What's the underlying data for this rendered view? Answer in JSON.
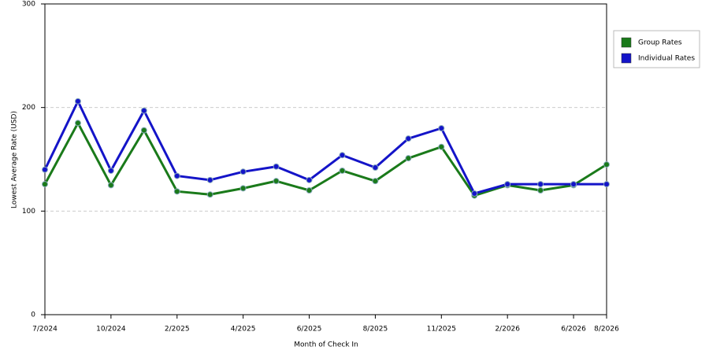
{
  "chart_data": {
    "type": "line",
    "x_label": "Month of Check In",
    "y_label": "Lowest Average Rate (USD)",
    "categories": [
      "7/2024",
      null,
      "10/2024",
      null,
      "2/2025",
      null,
      "4/2025",
      null,
      "6/2025",
      null,
      "8/2025",
      null,
      "11/2025",
      null,
      "2/2026",
      null,
      "6/2026",
      "8/2026"
    ],
    "series": [
      {
        "name": "Group Rates",
        "color": "#1a7a1a",
        "values": [
          126,
          185,
          125,
          178,
          119,
          116,
          122,
          129,
          120,
          139,
          129,
          151,
          162,
          115,
          125,
          120,
          125,
          145
        ]
      },
      {
        "name": "Individual Rates",
        "color": "#1414c8",
        "values": [
          140,
          206,
          139,
          197,
          134,
          130,
          138,
          143,
          130,
          154,
          142,
          170,
          180,
          117,
          126,
          126,
          126,
          126
        ]
      }
    ],
    "ylim": [
      0,
      300
    ],
    "yticks": [
      0,
      100,
      200,
      300
    ],
    "grid": true,
    "legend": "right"
  }
}
